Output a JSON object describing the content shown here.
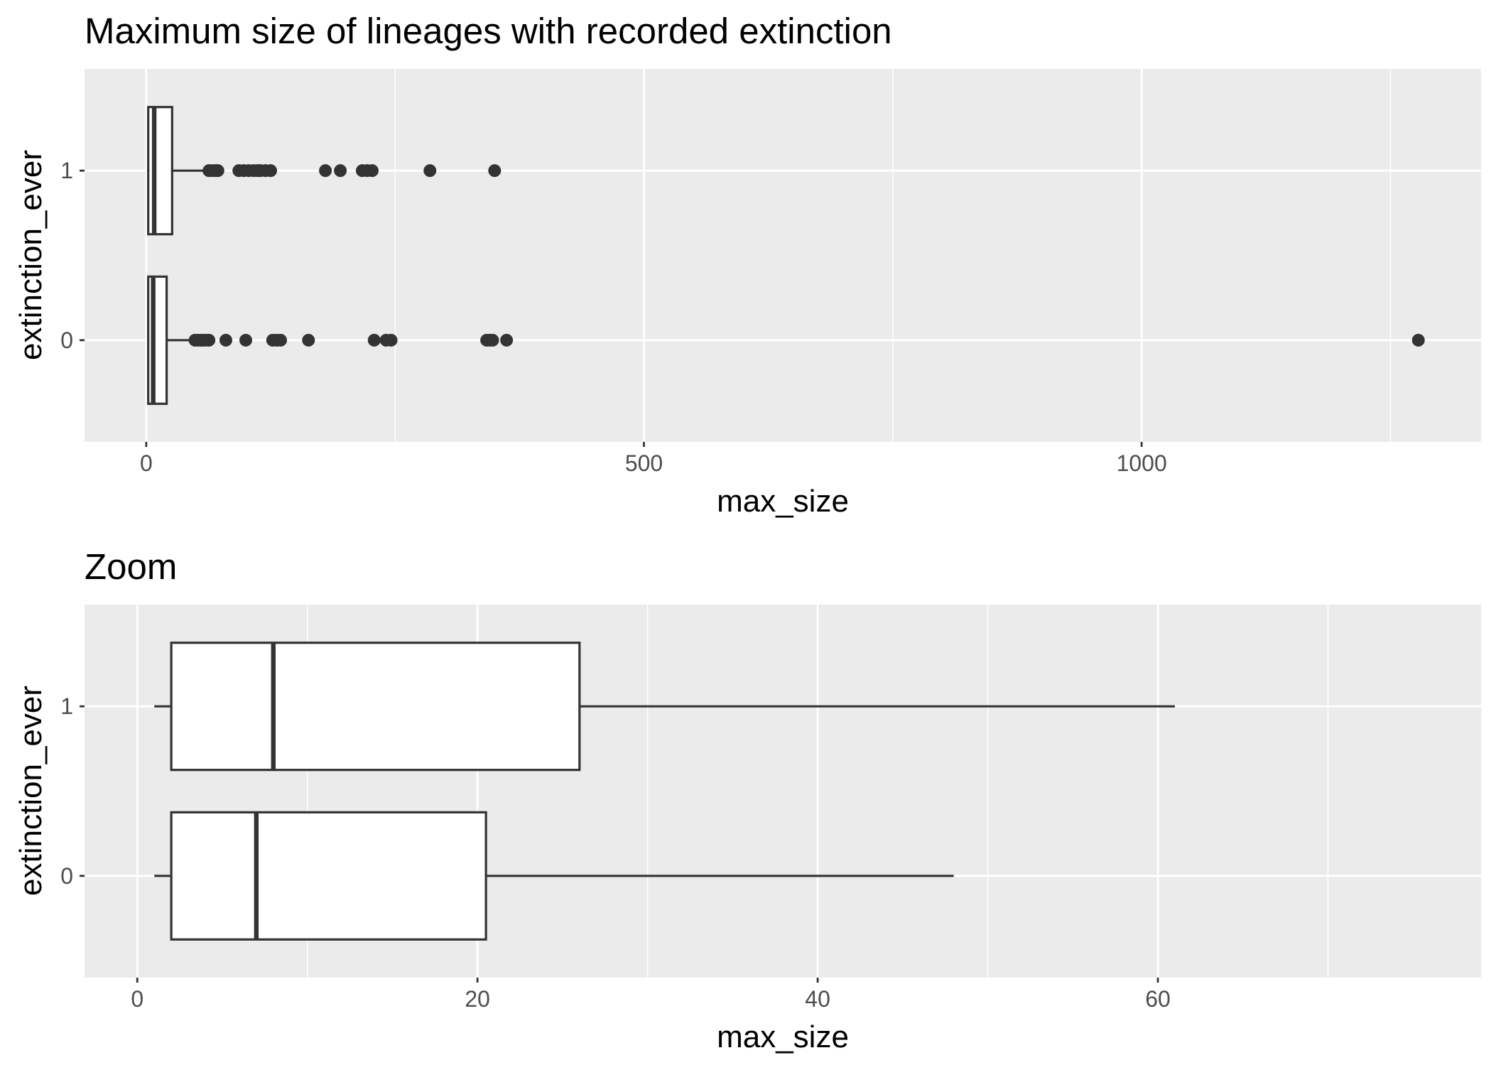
{
  "chart_data": [
    {
      "type": "boxplot",
      "title": "Maximum size of lineages with recorded extinction",
      "xlabel": "max_size",
      "ylabel": "extinction_ever",
      "xlim": [
        -62,
        1341
      ],
      "x_ticks": [
        0,
        500,
        1000
      ],
      "x_minor_ticks": [
        250,
        750,
        1250
      ],
      "categories": [
        "0",
        "1"
      ],
      "grid": true,
      "boxes": [
        {
          "category": "1",
          "whisker_low": 1,
          "q1": 2,
          "median": 8,
          "q3": 26,
          "whisker_high": 61,
          "outliers": [
            63,
            67,
            70,
            72,
            93,
            98,
            103,
            108,
            112,
            115,
            120,
            125,
            180,
            195,
            217,
            222,
            227,
            285,
            350
          ]
        },
        {
          "category": "0",
          "whisker_low": 1,
          "q1": 2,
          "median": 7,
          "q3": 20.5,
          "whisker_high": 48,
          "outliers": [
            49,
            52,
            55,
            57,
            60,
            63,
            80,
            100,
            127,
            131,
            135,
            163,
            229,
            241,
            246,
            342,
            345,
            348,
            362,
            1278
          ]
        }
      ]
    },
    {
      "type": "boxplot",
      "title": "Zoom",
      "xlabel": "max_size",
      "ylabel": "extinction_ever",
      "xlim": [
        -3.1,
        79
      ],
      "x_ticks": [
        0,
        20,
        40,
        60
      ],
      "x_minor_ticks": [
        10,
        30,
        50,
        70
      ],
      "categories": [
        "0",
        "1"
      ],
      "grid": true,
      "boxes": [
        {
          "category": "1",
          "whisker_low": 1,
          "q1": 2,
          "median": 8,
          "q3": 26,
          "whisker_high": 61,
          "outliers": []
        },
        {
          "category": "0",
          "whisker_low": 1,
          "q1": 2,
          "median": 7,
          "q3": 20.5,
          "whisker_high": 48,
          "outliers": []
        }
      ]
    }
  ]
}
